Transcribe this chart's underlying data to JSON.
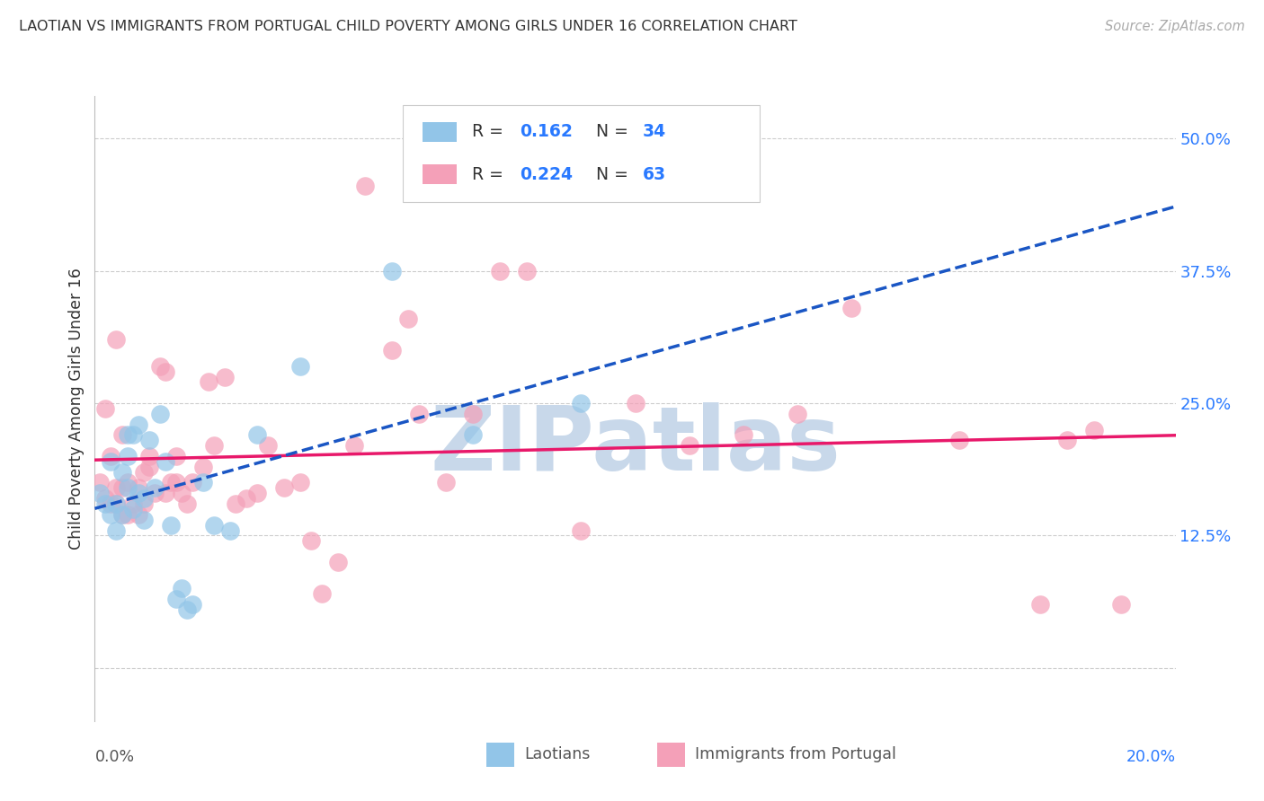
{
  "title": "LAOTIAN VS IMMIGRANTS FROM PORTUGAL CHILD POVERTY AMONG GIRLS UNDER 16 CORRELATION CHART",
  "source": "Source: ZipAtlas.com",
  "ylabel": "Child Poverty Among Girls Under 16",
  "color_laotian": "#92C5E8",
  "color_portugal": "#F4A0B8",
  "trendline_laotian": "#1A56C4",
  "trendline_portugal": "#E8186A",
  "trendline_laotian_dash": "--",
  "trendline_portugal_dash": "-",
  "watermark_color": "#C8D8EA",
  "background_color": "#FFFFFF",
  "grid_color": "#CCCCCC",
  "blue_label_color": "#2979FF",
  "xlim": [
    0.0,
    0.2
  ],
  "ylim": [
    -0.05,
    0.54
  ],
  "ytick_values": [
    0.0,
    0.125,
    0.25,
    0.375,
    0.5
  ],
  "ytick_labels": [
    "",
    "12.5%",
    "25.0%",
    "37.5%",
    "50.0%"
  ],
  "laotian_x": [
    0.001,
    0.002,
    0.003,
    0.003,
    0.004,
    0.004,
    0.005,
    0.005,
    0.006,
    0.006,
    0.006,
    0.007,
    0.007,
    0.008,
    0.008,
    0.009,
    0.009,
    0.01,
    0.011,
    0.012,
    0.013,
    0.014,
    0.015,
    0.016,
    0.017,
    0.018,
    0.02,
    0.022,
    0.025,
    0.03,
    0.038,
    0.055,
    0.07,
    0.09
  ],
  "laotian_y": [
    0.165,
    0.155,
    0.145,
    0.195,
    0.13,
    0.155,
    0.185,
    0.145,
    0.2,
    0.22,
    0.17,
    0.15,
    0.22,
    0.23,
    0.165,
    0.14,
    0.16,
    0.215,
    0.17,
    0.24,
    0.195,
    0.135,
    0.065,
    0.075,
    0.055,
    0.06,
    0.175,
    0.135,
    0.13,
    0.22,
    0.285,
    0.375,
    0.22,
    0.25
  ],
  "portugal_x": [
    0.001,
    0.002,
    0.002,
    0.003,
    0.003,
    0.004,
    0.004,
    0.004,
    0.005,
    0.005,
    0.005,
    0.006,
    0.006,
    0.007,
    0.008,
    0.008,
    0.009,
    0.009,
    0.01,
    0.01,
    0.011,
    0.012,
    0.013,
    0.013,
    0.014,
    0.015,
    0.015,
    0.016,
    0.017,
    0.018,
    0.02,
    0.021,
    0.022,
    0.024,
    0.026,
    0.028,
    0.03,
    0.032,
    0.035,
    0.038,
    0.04,
    0.042,
    0.045,
    0.048,
    0.05,
    0.055,
    0.058,
    0.06,
    0.065,
    0.07,
    0.075,
    0.08,
    0.09,
    0.1,
    0.11,
    0.12,
    0.13,
    0.14,
    0.16,
    0.175,
    0.18,
    0.185,
    0.19
  ],
  "portugal_y": [
    0.175,
    0.245,
    0.16,
    0.2,
    0.155,
    0.17,
    0.31,
    0.155,
    0.17,
    0.22,
    0.145,
    0.175,
    0.145,
    0.155,
    0.17,
    0.145,
    0.185,
    0.155,
    0.19,
    0.2,
    0.165,
    0.285,
    0.28,
    0.165,
    0.175,
    0.2,
    0.175,
    0.165,
    0.155,
    0.175,
    0.19,
    0.27,
    0.21,
    0.275,
    0.155,
    0.16,
    0.165,
    0.21,
    0.17,
    0.175,
    0.12,
    0.07,
    0.1,
    0.21,
    0.455,
    0.3,
    0.33,
    0.24,
    0.175,
    0.24,
    0.375,
    0.375,
    0.13,
    0.25,
    0.21,
    0.22,
    0.24,
    0.34,
    0.215,
    0.06,
    0.215,
    0.225,
    0.06
  ]
}
